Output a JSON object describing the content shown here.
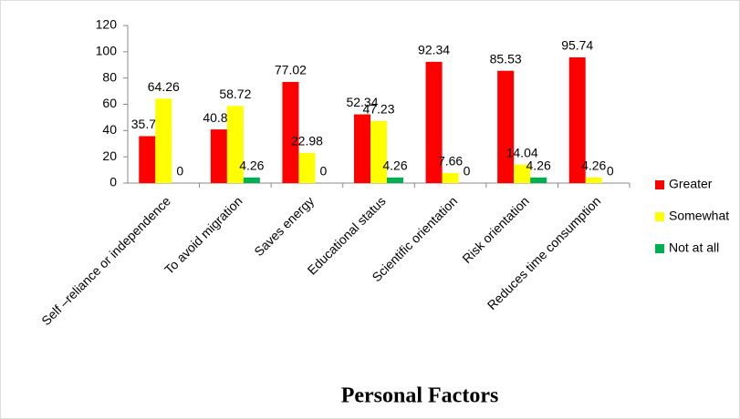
{
  "chart_data": {
    "type": "bar",
    "x_label": "Personal Factors",
    "categories": [
      "Self –reliance or independence",
      "To avoid migration",
      "Saves energy",
      "Educational status",
      "Scientific orientation",
      "Risk orientation",
      "Reduces time consumption"
    ],
    "series": [
      {
        "name": "Greater",
        "color": "#ff0000",
        "values": [
          35.74,
          40.85,
          77.02,
          52.34,
          92.34,
          85.53,
          95.74
        ]
      },
      {
        "name": "Somewhat",
        "color": "#ffff00",
        "values": [
          64.26,
          58.72,
          22.98,
          47.23,
          7.66,
          14.04,
          4.26
        ]
      },
      {
        "name": "Not at all",
        "color": "#00b050",
        "values": [
          0,
          4.26,
          0,
          4.26,
          0,
          4.26,
          0
        ]
      }
    ],
    "ylim": [
      0,
      120
    ],
    "yticks": [
      0,
      20,
      40,
      60,
      80,
      100,
      120
    ],
    "legend": "right"
  }
}
